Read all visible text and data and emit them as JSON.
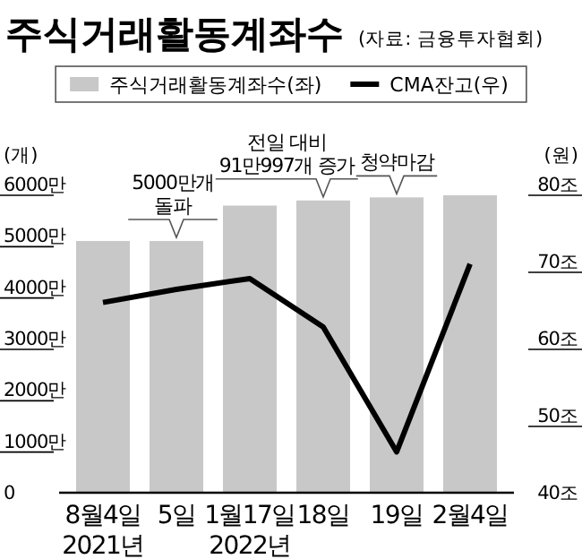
{
  "chart_data": {
    "type": "bar",
    "title": "주식거래활동계좌수",
    "categories": [
      "8월4일 2021년",
      "5일",
      "1월17일 2022년",
      "18일",
      "19일",
      "2월4일"
    ],
    "series": [
      {
        "name": "주식거래활동계좌수(좌)",
        "type": "bar",
        "color": "#c8c8c8",
        "values": [
          4900,
          4900,
          5590,
          5690,
          5750,
          5790
        ]
      },
      {
        "name": "CMA잔고(우)",
        "type": "line",
        "axis": "y2",
        "color": "#000000",
        "values": [
          64.7,
          66.4,
          67.8,
          61.5,
          45.3,
          69.7
        ]
      }
    ],
    "ylabel": "(개)",
    "y2label": "(원)",
    "ylim": [
      0,
      6000
    ],
    "yticks": [
      0,
      {
        "value": 1000,
        "label": "1000만"
      },
      {
        "value": 2000,
        "label": "2000만"
      },
      {
        "value": 3000,
        "label": "3000만"
      },
      {
        "value": 4000,
        "label": "4000만"
      },
      {
        "value": 5000,
        "label": "5000만"
      },
      {
        "value": 6000,
        "label": "6000만"
      }
    ],
    "y2lim": [
      40,
      80
    ],
    "y2ticks": [
      {
        "value": 40,
        "label": "40조"
      },
      {
        "value": 50,
        "label": "50조"
      },
      {
        "value": 60,
        "label": "60조"
      },
      {
        "value": 70,
        "label": "70조"
      },
      {
        "value": 80,
        "label": "80조"
      }
    ],
    "annotations": [
      "(자료: 금융투자협회)",
      {
        "text": "5000만개 돌파",
        "x": "5일",
        "y": 4900
      },
      {
        "text": "전일 대비 91만997개 증가",
        "x": "18일",
        "y": 5690
      },
      {
        "text": "청약마감",
        "x": "19일",
        "y": 5750
      }
    ],
    "legend": "top",
    "grid": false,
    "marker": "none",
    "line_style": "solid"
  }
}
